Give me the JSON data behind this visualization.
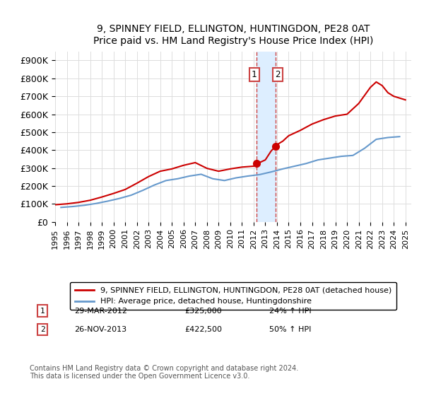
{
  "title_line1": "9, SPINNEY FIELD, ELLINGTON, HUNTINGDON, PE28 0AT",
  "title_line2": "Price paid vs. HM Land Registry's House Price Index (HPI)",
  "ylabel_ticks": [
    "£0",
    "£100K",
    "£200K",
    "£300K",
    "£400K",
    "£500K",
    "£600K",
    "£700K",
    "£800K",
    "£900K"
  ],
  "ytick_vals": [
    0,
    100000,
    200000,
    300000,
    400000,
    500000,
    600000,
    700000,
    800000,
    900000
  ],
  "ylim": [
    0,
    950000
  ],
  "xlim_start": 1995.0,
  "xlim_end": 2025.5,
  "xtick_years": [
    1995,
    1996,
    1997,
    1998,
    1999,
    2000,
    2001,
    2002,
    2003,
    2004,
    2005,
    2006,
    2007,
    2008,
    2009,
    2010,
    2011,
    2012,
    2013,
    2014,
    2015,
    2016,
    2017,
    2018,
    2019,
    2020,
    2021,
    2022,
    2023,
    2024,
    2025
  ],
  "legend_entry1": "9, SPINNEY FIELD, ELLINGTON, HUNTINGDON, PE28 0AT (detached house)",
  "legend_entry2": "HPI: Average price, detached house, Huntingdonshire",
  "transaction1_date": "29-MAR-2012",
  "transaction1_price": "£325,000",
  "transaction1_hpi": "24% ↑ HPI",
  "transaction2_date": "26-NOV-2013",
  "transaction2_price": "£422,500",
  "transaction2_hpi": "50% ↑ HPI",
  "footnote": "Contains HM Land Registry data © Crown copyright and database right 2024.\nThis data is licensed under the Open Government Licence v3.0.",
  "red_color": "#cc0000",
  "blue_color": "#6699cc",
  "shade_color": "#ddeeff",
  "transaction1_x": 2012.23,
  "transaction2_x": 2013.9,
  "transaction1_y": 325000,
  "transaction2_y": 422500,
  "vline1_x": 2012.23,
  "vline2_x": 2013.9,
  "years_hpi": [
    1995.5,
    1996.5,
    1997.5,
    1998.5,
    1999.5,
    2000.5,
    2001.5,
    2002.5,
    2003.5,
    2004.5,
    2005.5,
    2006.5,
    2007.5,
    2008.5,
    2009.5,
    2010.5,
    2011.5,
    2012.5,
    2013.5,
    2014.5,
    2015.5,
    2016.5,
    2017.5,
    2018.5,
    2019.5,
    2020.5,
    2021.5,
    2022.5,
    2023.5,
    2024.5
  ],
  "hpi_vals": [
    80000,
    85000,
    92000,
    102000,
    115000,
    130000,
    148000,
    175000,
    205000,
    230000,
    240000,
    255000,
    265000,
    240000,
    230000,
    245000,
    255000,
    263000,
    278000,
    295000,
    310000,
    325000,
    345000,
    355000,
    365000,
    370000,
    410000,
    460000,
    470000,
    475000
  ],
  "years_red": [
    1995.0,
    1996.0,
    1997.0,
    1998.0,
    1999.0,
    2000.0,
    2001.0,
    2002.0,
    2003.0,
    2004.0,
    2005.0,
    2006.0,
    2007.0,
    2008.0,
    2009.0,
    2010.0,
    2011.0,
    2012.0,
    2012.23,
    2012.5,
    2013.0,
    2013.5,
    2013.9,
    2014.0,
    2014.5,
    2015.0,
    2016.0,
    2017.0,
    2018.0,
    2019.0,
    2020.0,
    2021.0,
    2022.0,
    2022.5,
    2023.0,
    2023.5,
    2024.0,
    2024.5,
    2025.0
  ],
  "red_vals": [
    95000,
    100000,
    108000,
    120000,
    138000,
    158000,
    180000,
    215000,
    252000,
    282000,
    295000,
    315000,
    330000,
    298000,
    282000,
    295000,
    305000,
    310000,
    325000,
    330000,
    345000,
    395000,
    422500,
    430000,
    450000,
    480000,
    510000,
    545000,
    570000,
    590000,
    600000,
    660000,
    750000,
    780000,
    760000,
    720000,
    700000,
    690000,
    680000
  ]
}
